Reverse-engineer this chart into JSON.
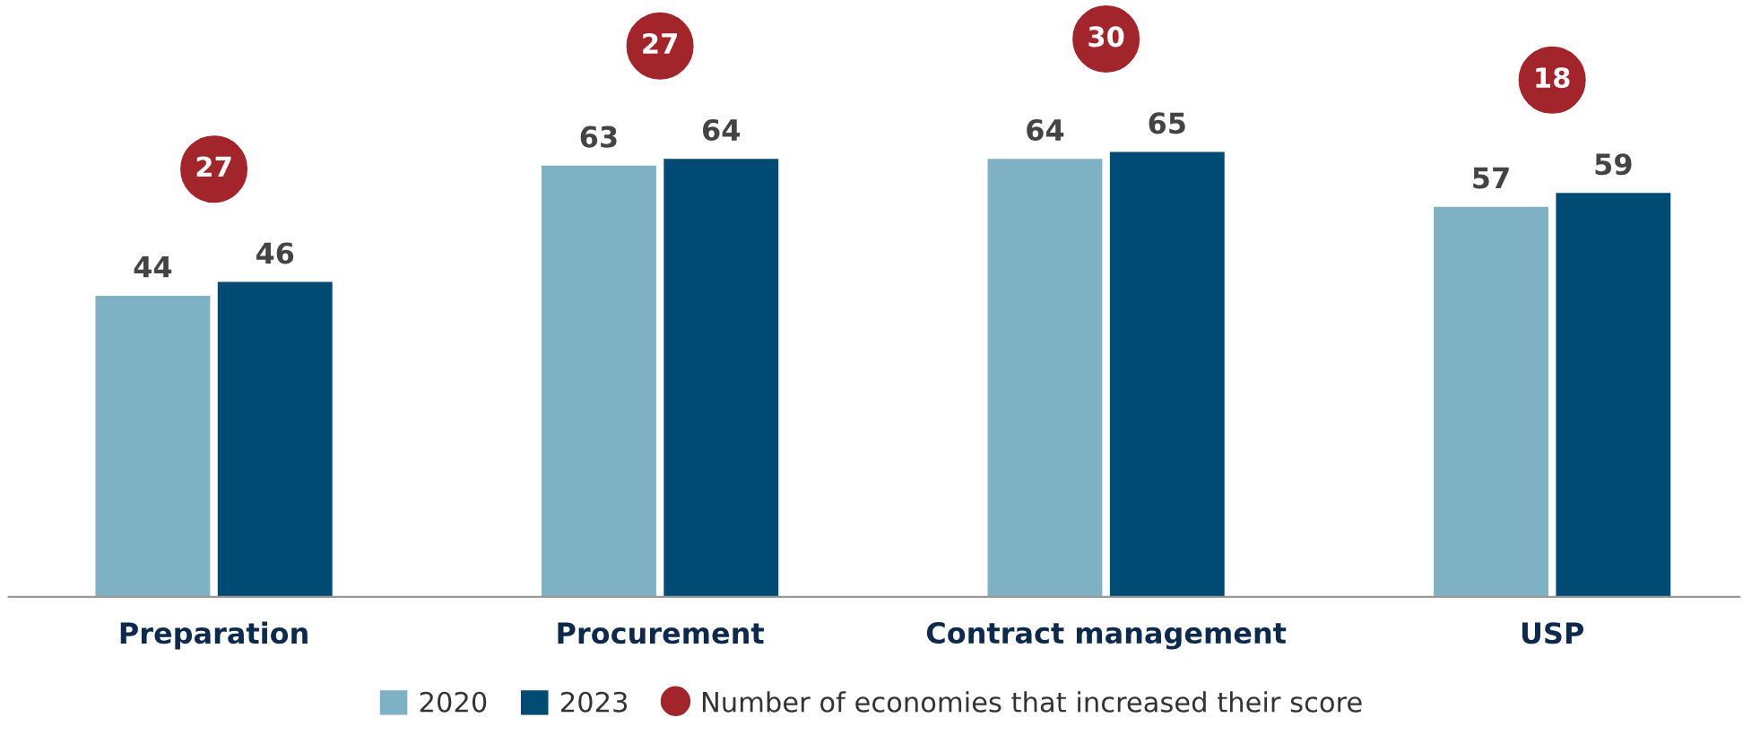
{
  "chart_data": {
    "type": "bar",
    "categories": [
      "Preparation",
      "Procurement",
      "Contract management",
      "USP"
    ],
    "series": [
      {
        "name": "2020",
        "color": "#7fb1c4",
        "values": [
          44,
          63,
          64,
          57
        ],
        "value_labels": [
          "44",
          "63",
          "64",
          "57"
        ]
      },
      {
        "name": "2023",
        "color": "#004b74",
        "values": [
          46,
          64,
          65,
          59
        ],
        "value_labels": [
          "46",
          "64",
          "65",
          "59"
        ]
      }
    ],
    "annotations": [
      "27",
      "27",
      "30",
      "18",
      "Number of economies that increased their score"
    ],
    "marker": "circle",
    "legend": "bottom",
    "grid": false
  }
}
